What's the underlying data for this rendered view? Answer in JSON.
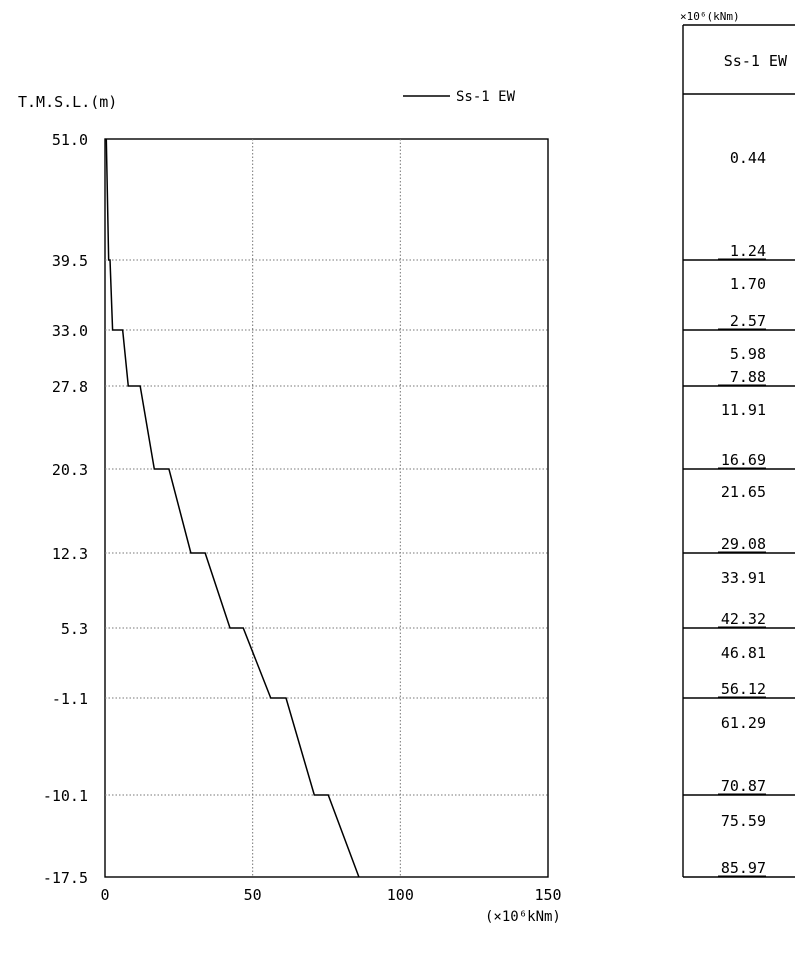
{
  "chart_data": {
    "type": "line",
    "ylabel": "T.M.S.L.(m)",
    "xunit": "(×10⁶kNm)",
    "legend": {
      "label": "Ss-1 EW",
      "placement": "top-right"
    },
    "xlim": [
      0,
      150
    ],
    "xticks": [
      "0",
      "50",
      "100",
      "150"
    ],
    "xgrid": [
      50,
      100
    ],
    "ylevels": [
      {
        "label": "51.0",
        "y": 51.0
      },
      {
        "label": "39.5",
        "y": 39.5
      },
      {
        "label": "33.0",
        "y": 33.0
      },
      {
        "label": "27.8",
        "y": 27.8
      },
      {
        "label": "20.3",
        "y": 20.3
      },
      {
        "label": "12.3",
        "y": 12.3
      },
      {
        "label": "5.3",
        "y": 5.3
      },
      {
        "label": "-1.1",
        "y": -1.1
      },
      {
        "label": "-10.1",
        "y": -10.1
      },
      {
        "label": "-17.5",
        "y": -17.5
      }
    ],
    "series": [
      {
        "name": "Ss-1 EW",
        "points": [
          [
            0.44,
            51.0
          ],
          [
            1.24,
            39.5
          ],
          [
            1.7,
            39.5
          ],
          [
            2.57,
            33.0
          ],
          [
            5.98,
            33.0
          ],
          [
            7.88,
            27.8
          ],
          [
            11.91,
            27.8
          ],
          [
            16.69,
            20.3
          ],
          [
            21.65,
            20.3
          ],
          [
            29.08,
            12.3
          ],
          [
            33.91,
            12.3
          ],
          [
            42.32,
            5.3
          ],
          [
            46.81,
            5.3
          ],
          [
            56.12,
            -1.1
          ],
          [
            61.29,
            -1.1
          ],
          [
            70.87,
            -10.1
          ],
          [
            75.59,
            -10.1
          ],
          [
            85.97,
            -17.5
          ]
        ]
      }
    ]
  },
  "table": {
    "unit": "×10⁶(kNm)",
    "header": "Ss-1 EW",
    "segments": [
      {
        "top": "0.44",
        "bottom": "1.24"
      },
      {
        "top": "1.70",
        "bottom": "2.57"
      },
      {
        "top": "5.98",
        "bottom": "7.88"
      },
      {
        "top": "11.91",
        "bottom": "16.69"
      },
      {
        "top": "21.65",
        "bottom": "29.08"
      },
      {
        "top": "33.91",
        "bottom": "42.32"
      },
      {
        "top": "46.81",
        "bottom": "56.12"
      },
      {
        "top": "61.29",
        "bottom": "70.87"
      },
      {
        "top": "75.59",
        "bottom": "85.97"
      }
    ]
  }
}
